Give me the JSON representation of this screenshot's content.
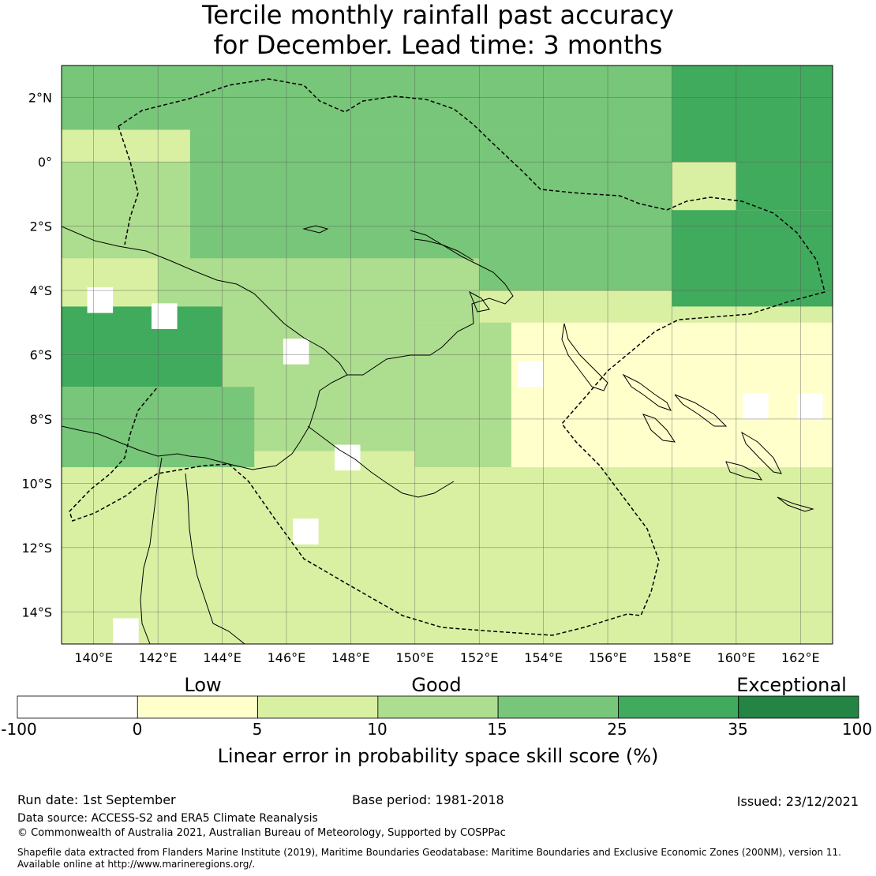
{
  "title": {
    "line1": "Tercile monthly rainfall past accuracy",
    "line2": "for December. Lead time: 3 months"
  },
  "map": {
    "lon_ticks": [
      "140°E",
      "142°E",
      "144°E",
      "146°E",
      "148°E",
      "150°E",
      "152°E",
      "154°E",
      "156°E",
      "158°E",
      "160°E",
      "162°E"
    ],
    "lat_ticks": [
      "2°N",
      "0°",
      "2°S",
      "4°S",
      "6°S",
      "8°S",
      "10°S",
      "12°S",
      "14°S"
    ],
    "lon_range": [
      139,
      163
    ],
    "lat_range": [
      -15,
      3
    ],
    "regions": [
      {
        "lat_max": 3,
        "lat_min": 1,
        "lon_min": 139,
        "lon_max": 158,
        "score": 18
      },
      {
        "lat_max": 3,
        "lat_min": 0,
        "lon_min": 158,
        "lon_max": 163,
        "score": 28
      },
      {
        "lat_max": 0.5,
        "lat_min": -1.5,
        "lon_min": 160,
        "lon_max": 163,
        "score": 30
      },
      {
        "lat_max": 1,
        "lat_min": -4,
        "lon_min": 143,
        "lon_max": 158,
        "score": 18
      },
      {
        "lat_max": 0,
        "lat_min": -3,
        "lon_min": 139,
        "lon_max": 143,
        "score": 12
      },
      {
        "lat_max": -1.5,
        "lat_min": -4.5,
        "lon_min": 158,
        "lon_max": 163,
        "score": 28
      },
      {
        "lat_max": -3,
        "lat_min": -5,
        "lon_min": 142,
        "lon_max": 152,
        "score": 14
      },
      {
        "lat_max": -4.5,
        "lat_min": -7,
        "lon_min": 139,
        "lon_max": 144,
        "score": 28
      },
      {
        "lat_max": -4,
        "lat_min": -9,
        "lon_min": 144,
        "lon_max": 150,
        "score": 14
      },
      {
        "lat_max": -7,
        "lat_min": -9.5,
        "lon_min": 139,
        "lon_max": 145,
        "score": 17
      },
      {
        "lat_max": -5,
        "lat_min": -10,
        "lon_min": 150,
        "lon_max": 153,
        "score": 10
      },
      {
        "lat_max": -5,
        "lat_min": -10,
        "lon_min": 153,
        "lon_max": 163,
        "score": 4
      },
      {
        "lat_max": -9.5,
        "lat_min": -15,
        "lon_min": 139,
        "lon_max": 163,
        "score": 6
      }
    ],
    "white_cells": [
      {
        "lat": -4.3,
        "lon": 140.2
      },
      {
        "lat": -4.8,
        "lon": 142.2
      },
      {
        "lat": -5.9,
        "lon": 146.3
      },
      {
        "lat": -6.6,
        "lon": 153.6
      },
      {
        "lat": -7.6,
        "lon": 160.6
      },
      {
        "lat": -7.6,
        "lon": 162.3
      },
      {
        "lat": -9.2,
        "lon": 147.9
      },
      {
        "lat": -11.5,
        "lon": 146.6
      },
      {
        "lat": -14.6,
        "lon": 141.0
      }
    ]
  },
  "colorbar": {
    "categories": [
      "Low",
      "Good",
      "Exceptional"
    ],
    "ticks": [
      "-100",
      "0",
      "5",
      "10",
      "15",
      "25",
      "35",
      "100"
    ],
    "colors": [
      "#ffffff",
      "#ffffcc",
      "#d9f0a3",
      "#addd8e",
      "#78c679",
      "#41ab5d",
      "#238443"
    ],
    "label": "Linear error in probability space skill score (%)"
  },
  "footer": {
    "run_date": "Run date: 1st September",
    "base_period": "Base period: 1981-2018",
    "issued": "Issued: 23/12/2021",
    "data_source": "Data source: ACCESS-S2 and ERA5 Climate Reanalysis",
    "copyright": "© Commonwealth of Australia 2021, Australian Bureau of Meteorology, Supported by COSPPac",
    "shapefile_line1": "Shapefile data extracted from Flanders Marine Institute (2019), Maritime Boundaries Geodatabase: Maritime Boundaries and Exclusive Economic Zones (200NM), version 11.",
    "shapefile_line2": "Available online at http://www.marineregions.org/."
  }
}
